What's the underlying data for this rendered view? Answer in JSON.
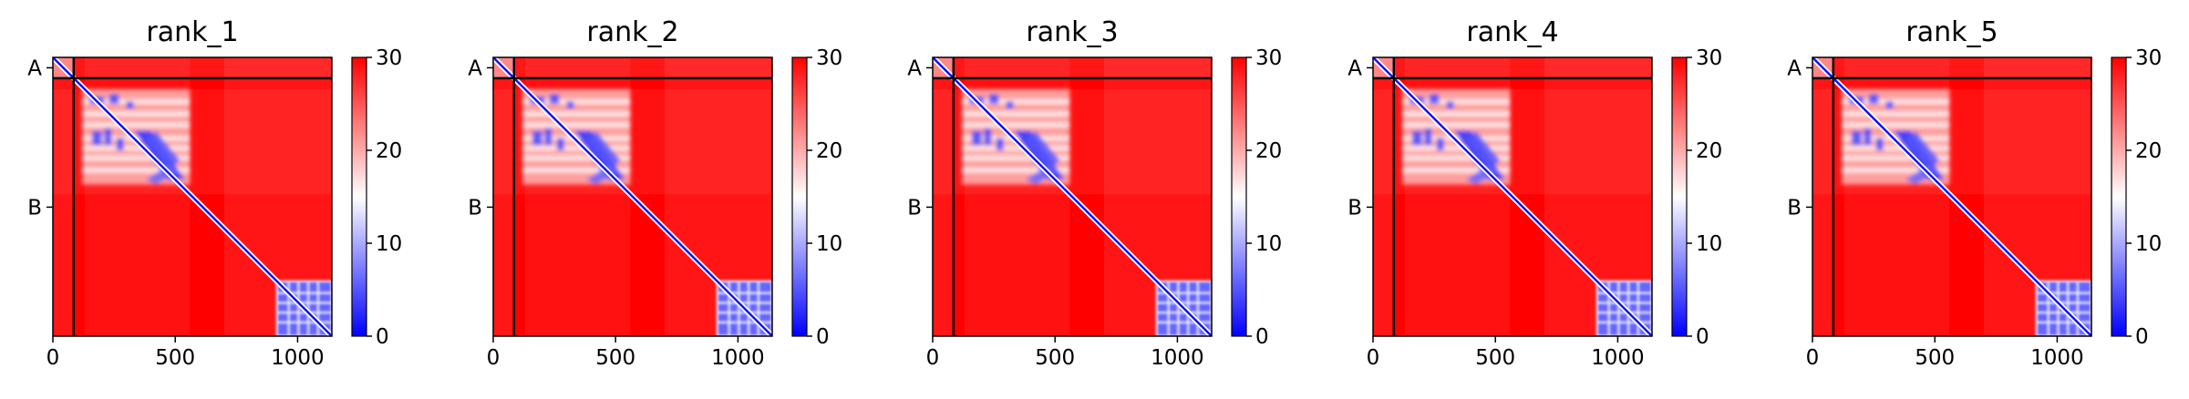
{
  "chart_data": [
    {
      "type": "heatmap",
      "title": "rank_1",
      "xlabel": "",
      "ylabel": "",
      "xlim": [
        0,
        1140
      ],
      "ylim": [
        1140,
        0
      ],
      "x_ticks": [
        "0",
        "500",
        "1000"
      ],
      "y_tick_labels": [
        "A",
        "B"
      ],
      "chain_boundary": 85,
      "colorbar": {
        "min": 0,
        "max": 30,
        "ticks": [
          "0",
          "10",
          "20",
          "30"
        ],
        "colormap": [
          "#0000ff",
          "#ffffff",
          "#ff0000"
        ]
      }
    },
    {
      "type": "heatmap",
      "title": "rank_2",
      "xlabel": "",
      "ylabel": "",
      "xlim": [
        0,
        1140
      ],
      "ylim": [
        1140,
        0
      ],
      "x_ticks": [
        "0",
        "500",
        "1000"
      ],
      "y_tick_labels": [
        "A",
        "B"
      ],
      "chain_boundary": 85,
      "colorbar": {
        "min": 0,
        "max": 30,
        "ticks": [
          "0",
          "10",
          "20",
          "30"
        ],
        "colormap": [
          "#0000ff",
          "#ffffff",
          "#ff0000"
        ]
      }
    },
    {
      "type": "heatmap",
      "title": "rank_3",
      "xlabel": "",
      "ylabel": "",
      "xlim": [
        0,
        1140
      ],
      "ylim": [
        1140,
        0
      ],
      "x_ticks": [
        "0",
        "500",
        "1000"
      ],
      "y_tick_labels": [
        "A",
        "B"
      ],
      "chain_boundary": 85,
      "colorbar": {
        "min": 0,
        "max": 30,
        "ticks": [
          "0",
          "10",
          "20",
          "30"
        ],
        "colormap": [
          "#0000ff",
          "#ffffff",
          "#ff0000"
        ]
      }
    },
    {
      "type": "heatmap",
      "title": "rank_4",
      "xlabel": "",
      "ylabel": "",
      "xlim": [
        0,
        1140
      ],
      "ylim": [
        1140,
        0
      ],
      "x_ticks": [
        "0",
        "500",
        "1000"
      ],
      "y_tick_labels": [
        "A",
        "B"
      ],
      "chain_boundary": 85,
      "colorbar": {
        "min": 0,
        "max": 30,
        "ticks": [
          "0",
          "10",
          "20",
          "30"
        ],
        "colormap": [
          "#0000ff",
          "#ffffff",
          "#ff0000"
        ]
      }
    },
    {
      "type": "heatmap",
      "title": "rank_5",
      "xlabel": "",
      "ylabel": "",
      "xlim": [
        0,
        1140
      ],
      "ylim": [
        1140,
        0
      ],
      "x_ticks": [
        "0",
        "500",
        "1000"
      ],
      "y_tick_labels": [
        "A",
        "B"
      ],
      "chain_boundary": 85,
      "colorbar": {
        "min": 0,
        "max": 30,
        "ticks": [
          "0",
          "10",
          "20",
          "30"
        ],
        "colormap": [
          "#0000ff",
          "#ffffff",
          "#ff0000"
        ]
      }
    }
  ]
}
